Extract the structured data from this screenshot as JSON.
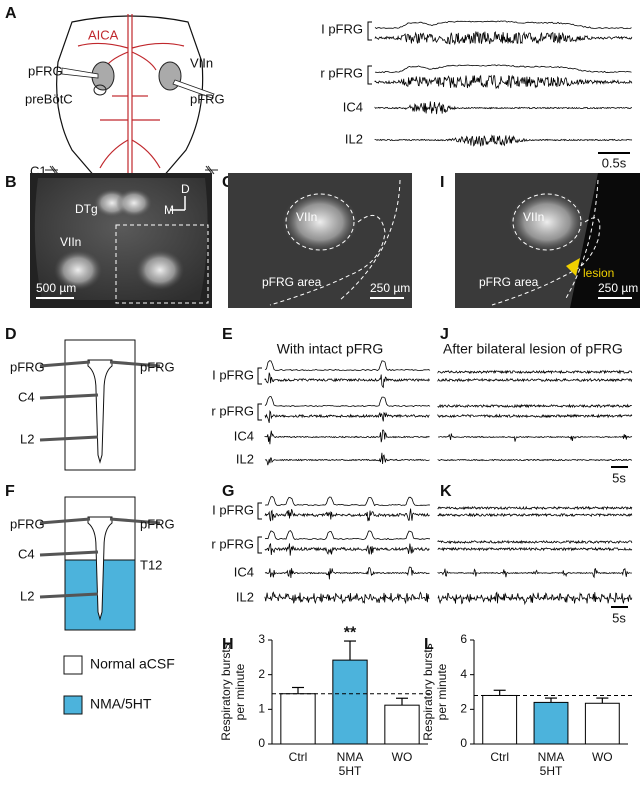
{
  "panel_a": {
    "letter": "A",
    "vessel": "AICA",
    "nerve": "VIIn",
    "pfrg_left": "pFRG",
    "pfrg_right": "pFRG",
    "prebotc": "preBötC",
    "root": "C1",
    "traces": [
      "I pFRG",
      "r pFRG",
      "IC4",
      "IL2"
    ],
    "scale": "0.5s"
  },
  "panel_b": {
    "letter": "B",
    "dtg": "DTg",
    "dorsal": "D",
    "medial": "M",
    "nerve": "VIIn",
    "scale": "500 µm"
  },
  "panel_c": {
    "letter": "C",
    "nerve": "VIIn",
    "area": "pFRG area",
    "scale": "250 µm"
  },
  "panel_i": {
    "letter": "I",
    "nerve": "VIIn",
    "area": "pFRG area",
    "lesion": "lesion",
    "scale": "250 µm"
  },
  "panel_d": {
    "letter": "D",
    "pfrg_left": "pFRG",
    "pfrg_right": "pFRG",
    "c4": "C4",
    "l2": "L2"
  },
  "panel_e": {
    "letter": "E",
    "title": "With intact pFRG",
    "traces": [
      "I pFRG",
      "r pFRG",
      "IC4",
      "IL2"
    ],
    "scale": "5s"
  },
  "panel_j": {
    "letter": "J",
    "title": "After bilateral lesion of pFRG"
  },
  "panel_f": {
    "letter": "F",
    "pfrg_left": "pFRG",
    "pfrg_right": "pFRG",
    "c4": "C4",
    "t12": "T12",
    "l2": "L2"
  },
  "panel_g": {
    "letter": "G",
    "traces": [
      "I pFRG",
      "r pFRG",
      "IC4",
      "IL2"
    ]
  },
  "panel_k": {
    "letter": "K",
    "scale": "5s"
  },
  "legend": {
    "items": [
      {
        "label": "Normal aCSF",
        "color": "#ffffff"
      },
      {
        "label": "NMA/5HT",
        "color": "#4cb3dc"
      }
    ]
  },
  "chart_data": [
    {
      "type": "bar",
      "letter": "H",
      "ylabel": "Respiratory bursts\nper minute",
      "categories": [
        "Ctrl",
        "NMA\n5HT",
        "WO"
      ],
      "values": [
        1.45,
        2.42,
        1.12
      ],
      "errors": [
        0.18,
        0.55,
        0.2
      ],
      "colors": [
        "#ffffff",
        "#4cb3dc",
        "#ffffff"
      ],
      "ylim": [
        0,
        3
      ],
      "yticks": [
        0,
        1,
        2,
        3
      ],
      "baseline": 1.45,
      "annotation": "**"
    },
    {
      "type": "bar",
      "letter": "L",
      "ylabel": "Respiratory bursts\nper minute",
      "categories": [
        "Ctrl",
        "NMA\n5HT",
        "WO"
      ],
      "values": [
        2.8,
        2.4,
        2.35
      ],
      "errors": [
        0.3,
        0.25,
        0.3
      ],
      "colors": [
        "#ffffff",
        "#4cb3dc",
        "#ffffff"
      ],
      "ylim": [
        0,
        6
      ],
      "yticks": [
        0,
        2,
        4,
        6
      ],
      "baseline": 2.8
    }
  ]
}
